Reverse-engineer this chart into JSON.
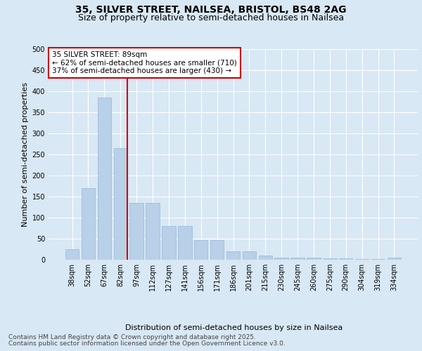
{
  "title_line1": "35, SILVER STREET, NAILSEA, BRISTOL, BS48 2AG",
  "title_line2": "Size of property relative to semi-detached houses in Nailsea",
  "xlabel": "Distribution of semi-detached houses by size in Nailsea",
  "ylabel": "Number of semi-detached properties",
  "categories": [
    "38sqm",
    "52sqm",
    "67sqm",
    "82sqm",
    "97sqm",
    "112sqm",
    "127sqm",
    "141sqm",
    "156sqm",
    "171sqm",
    "186sqm",
    "201sqm",
    "215sqm",
    "230sqm",
    "245sqm",
    "260sqm",
    "275sqm",
    "290sqm",
    "304sqm",
    "319sqm",
    "334sqm"
  ],
  "values": [
    25,
    170,
    385,
    265,
    135,
    135,
    80,
    80,
    47,
    47,
    20,
    20,
    10,
    5,
    5,
    5,
    3,
    3,
    2,
    2,
    5
  ],
  "bar_color": "#b8d0e8",
  "bar_edge_color": "#9ab8d8",
  "vline_x_index": 3,
  "vline_color": "#cc0000",
  "annotation_title": "35 SILVER STREET: 89sqm",
  "annotation_line1": "← 62% of semi-detached houses are smaller (710)",
  "annotation_line2": "37% of semi-detached houses are larger (430) →",
  "annotation_box_color": "#ffffff",
  "annotation_box_edge": "#cc0000",
  "ylim": [
    0,
    500
  ],
  "yticks": [
    0,
    50,
    100,
    150,
    200,
    250,
    300,
    350,
    400,
    450,
    500
  ],
  "bg_color": "#d8e8f4",
  "plot_bg_color": "#d8e8f4",
  "footer_line1": "Contains HM Land Registry data © Crown copyright and database right 2025.",
  "footer_line2": "Contains public sector information licensed under the Open Government Licence v3.0.",
  "title_fontsize": 10,
  "subtitle_fontsize": 9,
  "axis_label_fontsize": 8,
  "tick_fontsize": 7,
  "annotation_fontsize": 7.5,
  "footer_fontsize": 6.5
}
